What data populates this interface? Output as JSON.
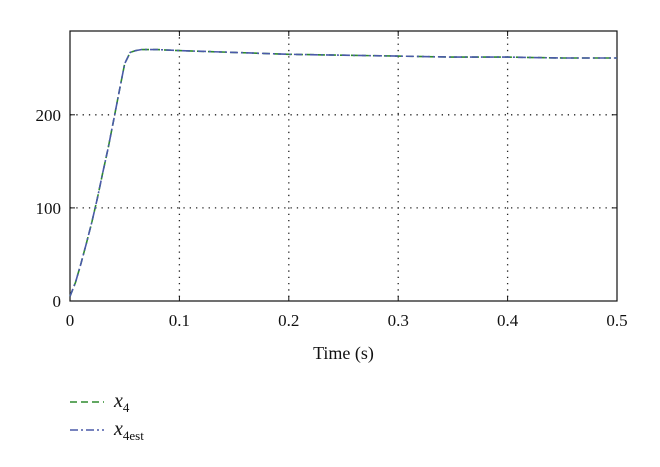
{
  "chart_data": {
    "type": "line",
    "xlabel": "Time (s)",
    "ylabel": "",
    "xlim": [
      0,
      0.5
    ],
    "ylim": [
      0,
      290
    ],
    "x_ticks": [
      0,
      0.1,
      0.2,
      0.3,
      0.4,
      0.5
    ],
    "x_tick_labels": [
      "0",
      "0.1",
      "0.2",
      "0.3",
      "0.4",
      "0.5"
    ],
    "y_ticks": [
      0,
      100,
      200
    ],
    "y_tick_labels": [
      "0",
      "100",
      "200"
    ],
    "grid": true,
    "grid_style": "dotted",
    "legend_placement": "below",
    "series": [
      {
        "name": "x4",
        "name_base": "x",
        "name_sub": "4",
        "color": "#2e8b2e",
        "dash": "dashed",
        "x": [
          0,
          0.005,
          0.01,
          0.015,
          0.02,
          0.025,
          0.03,
          0.035,
          0.04,
          0.045,
          0.05,
          0.055,
          0.06,
          0.065,
          0.07,
          0.08,
          0.1,
          0.15,
          0.2,
          0.25,
          0.3,
          0.35,
          0.4,
          0.45,
          0.5
        ],
        "values": [
          5,
          20,
          40,
          62,
          85,
          110,
          138,
          165,
          195,
          225,
          255,
          267,
          269,
          270,
          270,
          270,
          269,
          267,
          265,
          264,
          263,
          262,
          262,
          261,
          261
        ]
      },
      {
        "name": "x4est",
        "name_base": "x",
        "name_sub": "4est",
        "color": "#4a5aa8",
        "dash": "dashdot",
        "x": [
          0,
          0.005,
          0.01,
          0.015,
          0.02,
          0.025,
          0.03,
          0.035,
          0.04,
          0.045,
          0.05,
          0.055,
          0.06,
          0.065,
          0.07,
          0.08,
          0.1,
          0.15,
          0.2,
          0.25,
          0.3,
          0.35,
          0.4,
          0.45,
          0.5
        ],
        "values": [
          5,
          20,
          40,
          62,
          85,
          110,
          138,
          165,
          195,
          225,
          255,
          267,
          269,
          270,
          270,
          270,
          269,
          267,
          265,
          264,
          263,
          262,
          262,
          261,
          261
        ]
      }
    ]
  }
}
